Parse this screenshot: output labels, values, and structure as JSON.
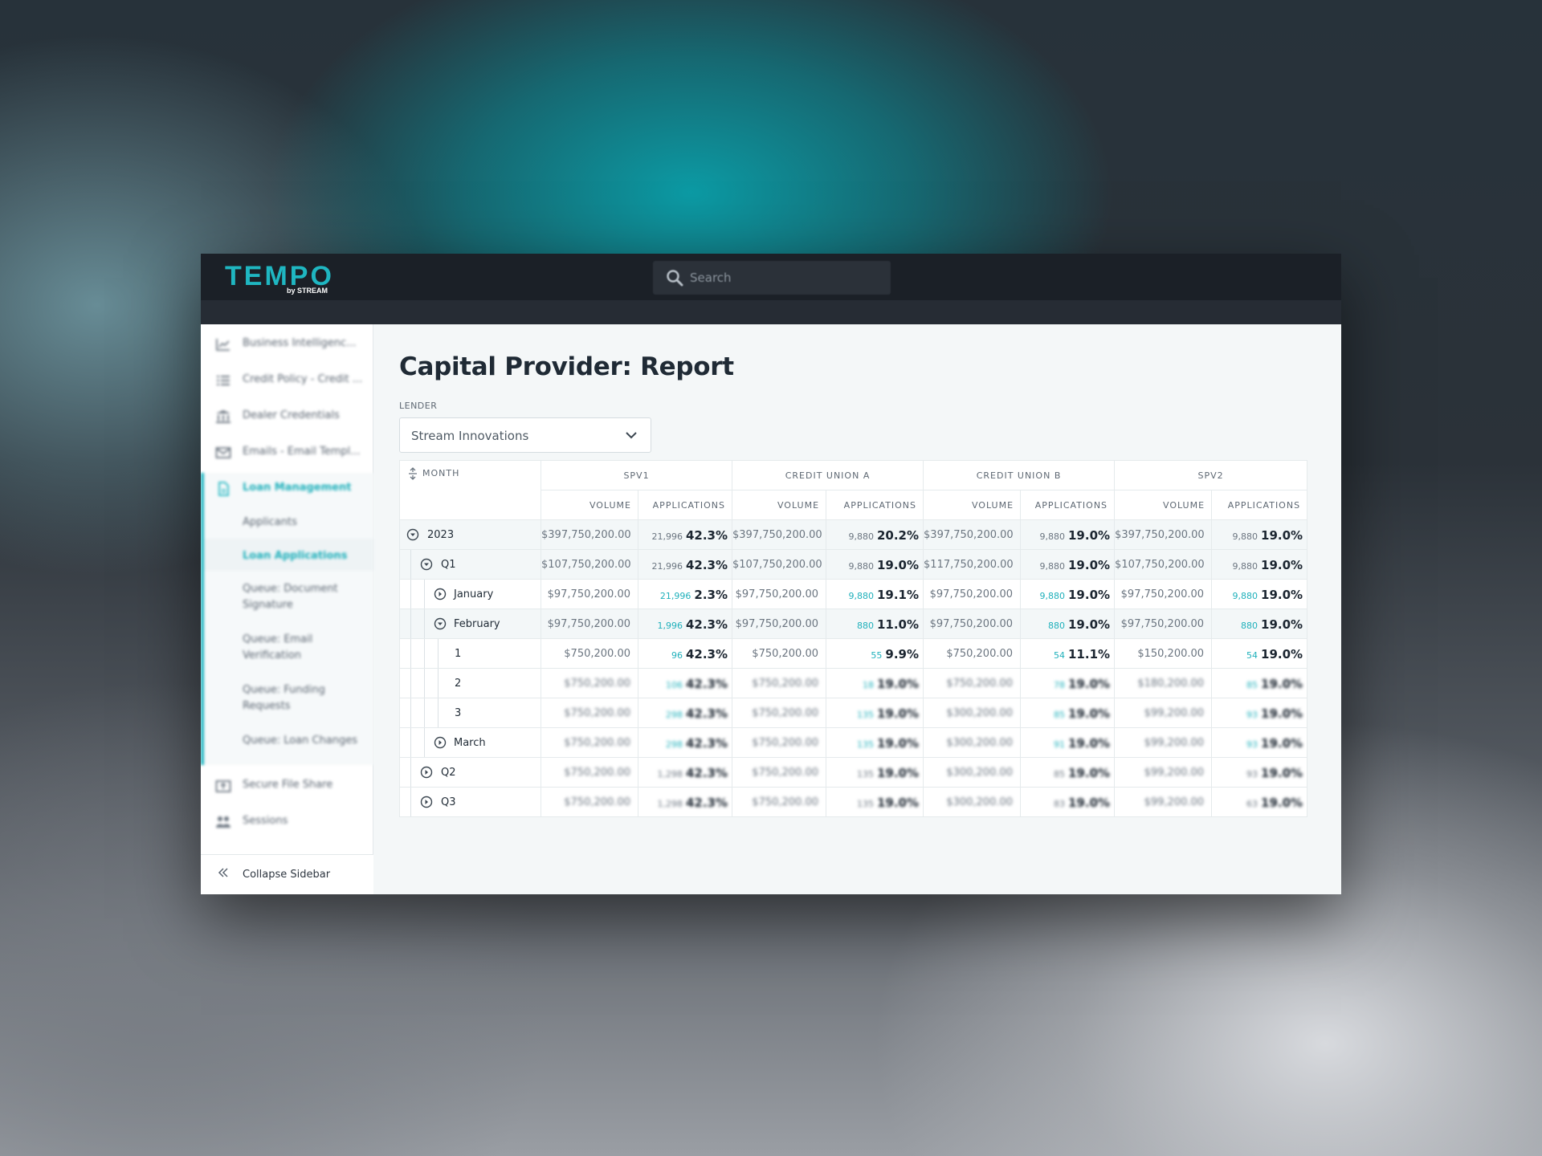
{
  "app": {
    "logo_main": "TEMPO",
    "logo_sub": "by STREAM",
    "search_placeholder": "Search"
  },
  "sidebar": {
    "items": [
      {
        "label": "Business Intelligenc...",
        "icon": "chart-icon"
      },
      {
        "label": "Credit Policy - Credit ...",
        "icon": "list-icon"
      },
      {
        "label": "Dealer Credentials",
        "icon": "bank-icon"
      },
      {
        "label": "Emails - Email Templ...",
        "icon": "mail-icon"
      },
      {
        "label": "Loan Management",
        "icon": "document-icon"
      },
      {
        "label": "Secure File Share",
        "icon": "file-share-icon"
      },
      {
        "label": "Sessions",
        "icon": "users-icon"
      }
    ],
    "subitems": [
      "Applicants",
      "Loan Applications",
      "Queue: Document Signature",
      "Queue: Email Verification",
      "Queue: Funding Requests",
      "Queue: Loan Changes"
    ],
    "collapse_label": "Collapse Sidebar"
  },
  "page": {
    "title": "Capital Provider: Report",
    "lender_label": "LENDER",
    "lender_value": "Stream Innovations"
  },
  "table": {
    "month_header": "MONTH",
    "groups": [
      "SPV1",
      "CREDIT UNION A",
      "CREDIT UNION B",
      "SPV2"
    ],
    "volume_header": "VOLUME",
    "applications_header": "APPLICATIONS",
    "rows": [
      {
        "label": "2023",
        "cells": [
          [
            "$397,750,200.00",
            "21,996",
            "42.3%"
          ],
          [
            "$397,750,200.00",
            "9,880",
            "20.2%"
          ],
          [
            "$397,750,200.00",
            "9,880",
            "19.0%"
          ],
          [
            "$397,750,200.00",
            "9,880",
            "19.0%"
          ]
        ]
      },
      {
        "label": "Q1",
        "cells": [
          [
            "$107,750,200.00",
            "21,996",
            "42.3%"
          ],
          [
            "$107,750,200.00",
            "9,880",
            "19.0%"
          ],
          [
            "$117,750,200.00",
            "9,880",
            "19.0%"
          ],
          [
            "$107,750,200.00",
            "9,880",
            "19.0%"
          ]
        ]
      },
      {
        "label": "January",
        "cells": [
          [
            "$97,750,200.00",
            "21,996",
            "2.3%"
          ],
          [
            "$97,750,200.00",
            "9,880",
            "19.1%"
          ],
          [
            "$97,750,200.00",
            "9,880",
            "19.0%"
          ],
          [
            "$97,750,200.00",
            "9,880",
            "19.0%"
          ]
        ]
      },
      {
        "label": "February",
        "cells": [
          [
            "$97,750,200.00",
            "1,996",
            "42.3%"
          ],
          [
            "$97,750,200.00",
            "880",
            "11.0%"
          ],
          [
            "$97,750,200.00",
            "880",
            "19.0%"
          ],
          [
            "$97,750,200.00",
            "880",
            "19.0%"
          ]
        ]
      },
      {
        "label": "1",
        "cells": [
          [
            "$750,200.00",
            "96",
            "42.3%"
          ],
          [
            "$750,200.00",
            "55",
            "9.9%"
          ],
          [
            "$750,200.00",
            "54",
            "11.1%"
          ],
          [
            "$150,200.00",
            "54",
            "19.0%"
          ]
        ]
      },
      {
        "label": "2",
        "cells": [
          [
            "$750,200.00",
            "106",
            "42.3%"
          ],
          [
            "$750,200.00",
            "18",
            "19.0%"
          ],
          [
            "$750,200.00",
            "78",
            "19.0%"
          ],
          [
            "$180,200.00",
            "85",
            "19.0%"
          ]
        ]
      },
      {
        "label": "3",
        "cells": [
          [
            "$750,200.00",
            "298",
            "42.3%"
          ],
          [
            "$750,200.00",
            "135",
            "19.0%"
          ],
          [
            "$300,200.00",
            "85",
            "19.0%"
          ],
          [
            "$99,200.00",
            "93",
            "19.0%"
          ]
        ]
      },
      {
        "label": "March",
        "cells": [
          [
            "$750,200.00",
            "298",
            "42.3%"
          ],
          [
            "$750,200.00",
            "135",
            "19.0%"
          ],
          [
            "$300,200.00",
            "91",
            "19.0%"
          ],
          [
            "$99,200.00",
            "93",
            "19.0%"
          ]
        ]
      },
      {
        "label": "Q2",
        "cells": [
          [
            "$750,200.00",
            "1,298",
            "42.3%"
          ],
          [
            "$750,200.00",
            "135",
            "19.0%"
          ],
          [
            "$300,200.00",
            "85",
            "19.0%"
          ],
          [
            "$99,200.00",
            "93",
            "19.0%"
          ]
        ]
      },
      {
        "label": "Q3",
        "cells": [
          [
            "$750,200.00",
            "1,298",
            "42.3%"
          ],
          [
            "$750,200.00",
            "135",
            "19.0%"
          ],
          [
            "$300,200.00",
            "83",
            "19.0%"
          ],
          [
            "$99,200.00",
            "63",
            "19.0%"
          ]
        ]
      }
    ]
  },
  "colors": {
    "accent": "#1fb6c1",
    "topbar": "#1b2027",
    "text": "#1f2a35"
  }
}
